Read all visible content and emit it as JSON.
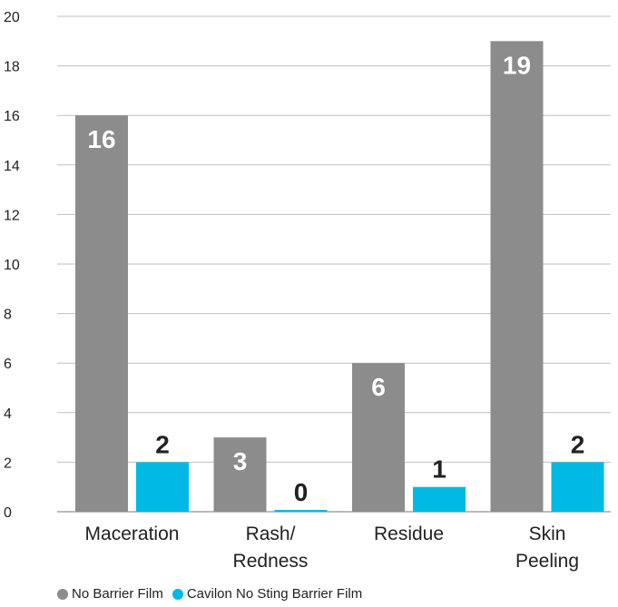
{
  "chart_data": {
    "type": "bar",
    "categories": [
      "Maceration",
      "Rash/\nRedness",
      "Residue",
      "Skin\nPeeling"
    ],
    "series": [
      {
        "name": "No Barrier Film",
        "values": [
          16,
          3,
          6,
          19
        ],
        "color": "#8c8c8c",
        "label_color": "#ffffff",
        "label_position": "inside-top"
      },
      {
        "name": "Cavilon No Sting Barrier Film",
        "values": [
          2,
          0,
          1,
          2
        ],
        "color": "#00b9e4",
        "label_color": "#222222",
        "label_position": "above"
      }
    ],
    "ylim": [
      0,
      20
    ],
    "yticks": [
      0,
      2,
      4,
      6,
      8,
      10,
      12,
      14,
      16,
      18,
      20
    ],
    "grid": true,
    "title": "",
    "xlabel": "",
    "ylabel": "",
    "legend_position": "bottom-left"
  }
}
